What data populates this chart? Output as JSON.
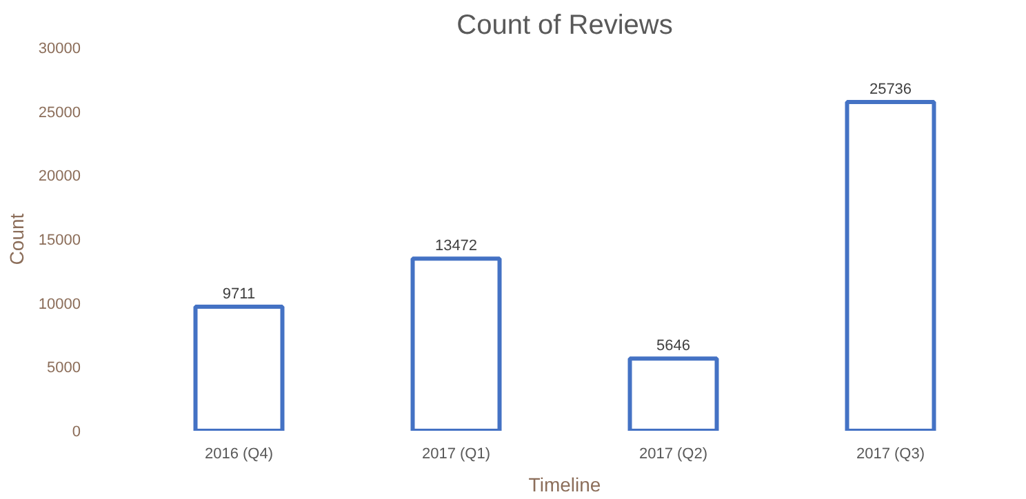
{
  "chart_data": {
    "type": "bar",
    "title": "Count of Reviews",
    "xlabel": "Timeline",
    "ylabel": "Count",
    "categories": [
      "2016 (Q4)",
      "2017 (Q1)",
      "2017 (Q2)",
      "2017 (Q3)"
    ],
    "values": [
      9711,
      13472,
      5646,
      25736
    ],
    "color": "#4472c4",
    "ylim": [
      0,
      30000
    ],
    "yticks": [
      0,
      5000,
      10000,
      15000,
      20000,
      25000,
      30000
    ],
    "data_labels": true,
    "grid": false
  }
}
